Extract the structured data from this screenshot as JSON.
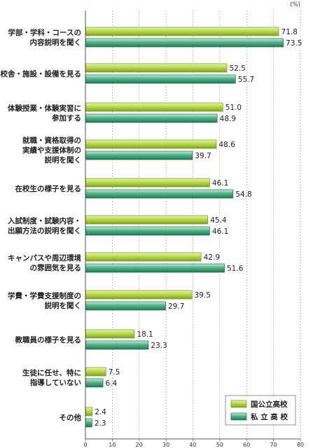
{
  "chart_data": {
    "type": "bar",
    "orientation": "horizontal",
    "unit": "(%)",
    "xlim": [
      0,
      80
    ],
    "x_ticks": [
      0,
      10,
      20,
      30,
      40,
      50,
      60,
      70,
      80
    ],
    "grid": "vertical dashed",
    "legend_position": "bottom-right",
    "categories": [
      [
        "学部・学科・コースの",
        "内容説明を聞く"
      ],
      [
        "校舎・施設・設備を見る"
      ],
      [
        "体験授業・体験実習に",
        "参加する"
      ],
      [
        "就職・資格取得の",
        "実績や支援体制の",
        "説明を聞く"
      ],
      [
        "在校生の様子を見る"
      ],
      [
        "入試制度・試験内容・",
        "出願方法の説明を聞く"
      ],
      [
        "キャンパスや周辺環境",
        "の雰囲気を見る"
      ],
      [
        "学費・学費支援制度の",
        "説明を聞く"
      ],
      [
        "教職員の様子を見る"
      ],
      [
        "生徒に任せ、特に",
        "指導していない"
      ],
      [
        "その他"
      ]
    ],
    "series": [
      {
        "name": "国公立高校",
        "color": "#a8cc3a",
        "values": [
          71.8,
          52.5,
          51.0,
          48.6,
          46.1,
          45.4,
          42.9,
          39.5,
          18.1,
          7.5,
          2.4
        ]
      },
      {
        "name": "私 立 高 校",
        "color": "#3aa07a",
        "values": [
          73.5,
          55.7,
          48.9,
          39.7,
          54.8,
          46.1,
          51.6,
          29.7,
          23.3,
          6.4,
          2.3
        ]
      }
    ]
  }
}
